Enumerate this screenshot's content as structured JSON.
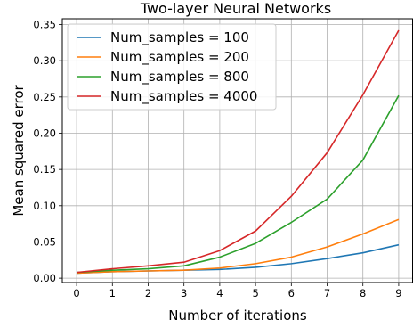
{
  "chart_data": {
    "type": "line",
    "title": "Two-layer Neural Networks",
    "xlabel": "Number of iterations",
    "ylabel": "Mean squared error",
    "x": [
      0,
      1,
      2,
      3,
      4,
      5,
      6,
      7,
      8,
      9
    ],
    "xticks": [
      "0",
      "1",
      "2",
      "3",
      "4",
      "5",
      "6",
      "7",
      "8",
      "9"
    ],
    "yticks": [
      "0.00",
      "0.05",
      "0.10",
      "0.15",
      "0.20",
      "0.25",
      "0.30",
      "0.35"
    ],
    "xlim": [
      -0.4,
      9.4
    ],
    "ylim": [
      -0.006,
      0.358
    ],
    "grid": true,
    "legend_position": "top-left",
    "series": [
      {
        "name": "Num_samples = 100",
        "color": "#1f77b4",
        "values": [
          0.007,
          0.009,
          0.01,
          0.011,
          0.012,
          0.015,
          0.02,
          0.027,
          0.035,
          0.046
        ]
      },
      {
        "name": "Num_samples = 200",
        "color": "#ff7f0e",
        "values": [
          0.007,
          0.009,
          0.01,
          0.011,
          0.014,
          0.02,
          0.029,
          0.043,
          0.061,
          0.081
        ]
      },
      {
        "name": "Num_samples = 800",
        "color": "#2ca02c",
        "values": [
          0.008,
          0.011,
          0.013,
          0.017,
          0.029,
          0.048,
          0.077,
          0.109,
          0.163,
          0.252
        ]
      },
      {
        "name": "Num_samples = 4000",
        "color": "#d62728",
        "values": [
          0.008,
          0.013,
          0.017,
          0.022,
          0.038,
          0.065,
          0.113,
          0.173,
          0.253,
          0.342
        ]
      }
    ]
  }
}
